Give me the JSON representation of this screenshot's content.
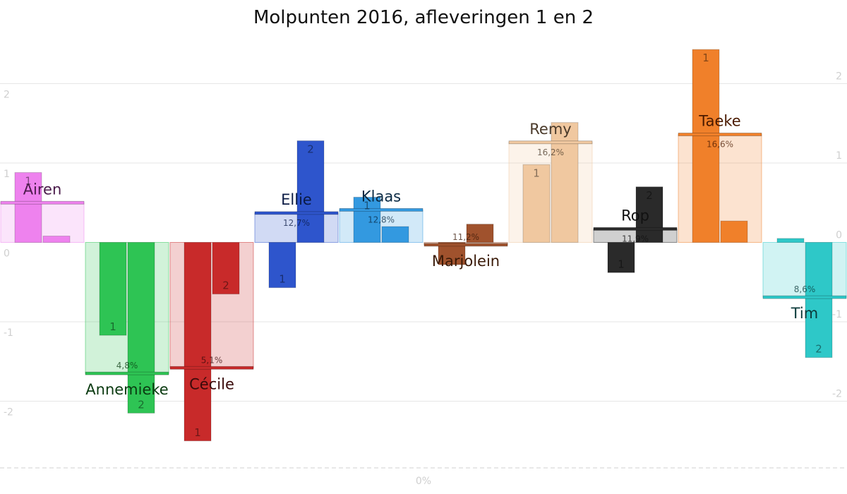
{
  "chart_data": {
    "type": "bar",
    "title": "Molpunten 2016, afleveringen 1 en 2",
    "xlabel": "0%",
    "ylabel": "",
    "ylim": [
      -2.85,
      2.52
    ],
    "grid": true,
    "left_ticks": [
      "2",
      "1",
      "0",
      "-1",
      "-2"
    ],
    "right_ticks": [
      "2",
      "1",
      "0",
      "-1",
      "-2"
    ],
    "categories": [
      "Airen",
      "Annemieke",
      "Cécile",
      "Ellie",
      "Klaas",
      "Marjolein",
      "Remy",
      "Rop",
      "Taeke",
      "Tim"
    ],
    "series": [
      {
        "name": "1",
        "values": [
          0.88,
          -1.17,
          -2.5,
          -0.57,
          0.57,
          -0.28,
          0.98,
          -0.38,
          2.43,
          0.05
        ]
      },
      {
        "name": "2",
        "values": [
          0.08,
          -2.15,
          -0.65,
          1.28,
          0.2,
          0.23,
          1.51,
          0.7,
          0.27,
          -1.45
        ]
      }
    ],
    "totals": [
      0.5,
      -1.65,
      -1.58,
      0.37,
      0.41,
      -0.03,
      1.26,
      0.17,
      1.36,
      -0.69
    ],
    "percentages": [
      "",
      "4,8%",
      "5,1%",
      "12,7%",
      "12,8%",
      "11,2%",
      "16,2%",
      "11,9%",
      "16,6%",
      "8,6%"
    ],
    "colors": [
      "#ee82ee",
      "#2ec454",
      "#c82a2a",
      "#2e55cc",
      "#3399e0",
      "#a0522d",
      "#f0c8a0",
      "#2a2a2a",
      "#f0802a",
      "#2ec8c8"
    ],
    "name_colors": [
      "#4a1a4a",
      "#0a3a10",
      "#3a0a0a",
      "#0a1a44",
      "#0a2a44",
      "#3a1a08",
      "#4a3a2a",
      "#111111",
      "#4a1a00",
      "#0a3a3a"
    ],
    "show_episode_labels": [
      [
        true,
        false
      ],
      [
        true,
        true
      ],
      [
        true,
        true
      ],
      [
        true,
        true
      ],
      [
        true,
        false
      ],
      [
        false,
        false
      ],
      [
        true,
        false
      ],
      [
        true,
        true
      ],
      [
        true,
        false
      ],
      [
        false,
        true
      ]
    ]
  }
}
